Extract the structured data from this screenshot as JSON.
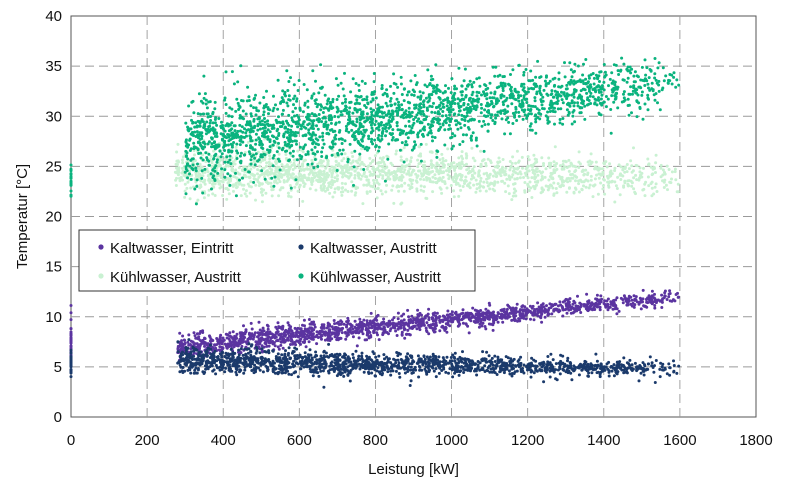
{
  "chart_data": {
    "type": "scatter",
    "xlabel": "Leistung [kW]",
    "ylabel": "Temperatur [°C]",
    "xlim": [
      0,
      1800
    ],
    "ylim": [
      0,
      40
    ],
    "x_ticks": [
      0,
      200,
      400,
      600,
      800,
      1000,
      1200,
      1400,
      1600,
      1800
    ],
    "y_ticks": [
      0,
      5,
      10,
      15,
      20,
      25,
      30,
      35,
      40
    ],
    "grid": true,
    "legend_position": "middle-left",
    "series": [
      {
        "name": "Kaltwasser, Eintritt",
        "color": "#5b34a0",
        "bands": [
          {
            "x": [
              280,
              1600
            ],
            "y_center": [
              7.0,
              12.0
            ],
            "spread": [
              0.8,
              0.5
            ],
            "count": 1600
          },
          {
            "x": [
              0,
              0
            ],
            "y_center": [
              8.0,
              8.0
            ],
            "spread": [
              1.6,
              1.6
            ],
            "count": 40
          }
        ]
      },
      {
        "name": "Kaltwasser, Austritt",
        "color": "#1b3a6b",
        "bands": [
          {
            "x": [
              280,
              1600
            ],
            "y_center": [
              5.7,
              4.7
            ],
            "spread": [
              0.9,
              0.5
            ],
            "count": 1600
          },
          {
            "x": [
              0,
              0
            ],
            "y_center": [
              5.5,
              5.5
            ],
            "spread": [
              0.8,
              0.8
            ],
            "count": 25
          }
        ]
      },
      {
        "name": "Kühlwasser, Austritt",
        "color": "#c9f1d2",
        "bands": [
          {
            "x": [
              270,
              1600
            ],
            "y_center": [
              24.5,
              24.0
            ],
            "spread": [
              1.6,
              1.2
            ],
            "count": 1700
          }
        ]
      },
      {
        "name": "Kühlwasser, Austritt",
        "color": "#0ab37e",
        "bands": [
          {
            "x": [
              300,
              1600
            ],
            "y_center": [
              27.5,
              33.5
            ],
            "spread": [
              3.0,
              1.5
            ],
            "count": 2200
          },
          {
            "x": [
              0,
              0
            ],
            "y_center": [
              23.5,
              23.5
            ],
            "spread": [
              1.3,
              1.3
            ],
            "count": 25
          }
        ]
      }
    ]
  }
}
